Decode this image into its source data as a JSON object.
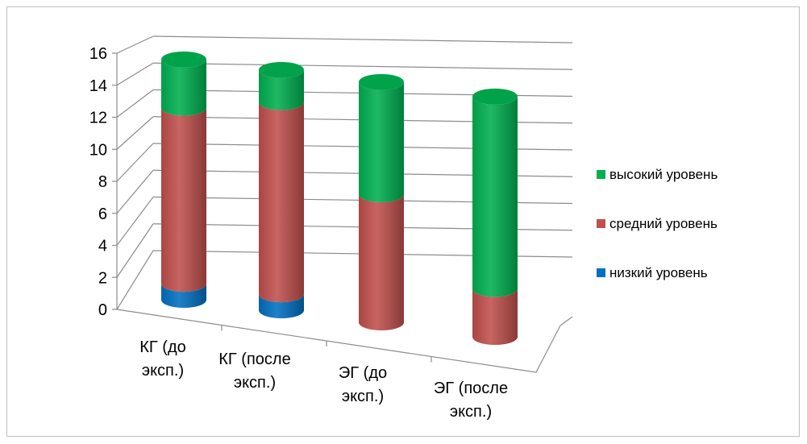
{
  "chart_data": {
    "type": "bar",
    "stacked": true,
    "style": "3d-cylinder",
    "categories": [
      [
        "КГ (до",
        "эксп.)"
      ],
      [
        "КГ (после",
        "эксп.)"
      ],
      [
        "ЭГ (до",
        "эксп.)"
      ],
      [
        "ЭГ (после",
        "эксп.)"
      ]
    ],
    "series": [
      {
        "name": "низкий уровень",
        "color": "#0070c0",
        "values": [
          1,
          1,
          0,
          0
        ]
      },
      {
        "name": "средний уровень",
        "color": "#c0504d",
        "values": [
          11,
          12,
          8,
          3
        ]
      },
      {
        "name": "высокий уровень",
        "color": "#00b050",
        "values": [
          3,
          2,
          7,
          12
        ]
      }
    ],
    "ylim": [
      0,
      16
    ],
    "yticks": [
      "0",
      "2",
      "4",
      "6",
      "8",
      "10",
      "12",
      "14",
      "16"
    ],
    "grid": true,
    "legend": "right",
    "legend_order": [
      "высокий уровень",
      "средний уровень",
      "низкий уровень"
    ]
  }
}
